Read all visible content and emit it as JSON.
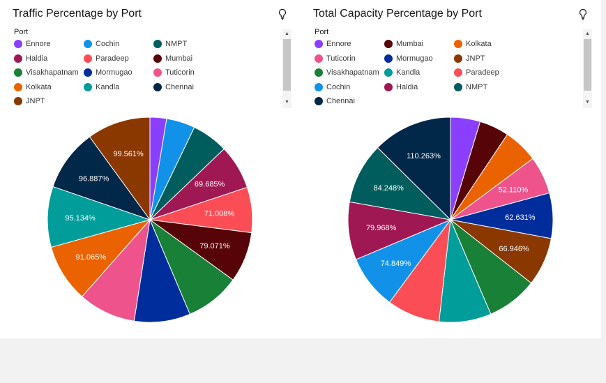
{
  "chart_data": [
    {
      "type": "pie",
      "title": "Traffic Percentage by Port",
      "legend_title": "Port",
      "legend": [
        "Ennore",
        "Cochin",
        "NMPT",
        "Haldia",
        "Paradeep",
        "Mumbai",
        "Visakhapatnam",
        "Mormugao",
        "Tuticorin",
        "Kolkata",
        "Kandla",
        "Chennai",
        "JNPT"
      ],
      "slices": [
        {
          "name": "Ennore",
          "value": 26,
          "color": "#8a3ffc",
          "label": ""
        },
        {
          "name": "Cochin",
          "value": 45,
          "color": "#1192e8",
          "label": ""
        },
        {
          "name": "NMPT",
          "value": 57,
          "color": "#005d5d",
          "label": ""
        },
        {
          "name": "Haldia",
          "value": 69.685,
          "color": "#9f1853",
          "label": "69.685%"
        },
        {
          "name": "Paradeep",
          "value": 71.008,
          "color": "#fa4d56",
          "label": "71.008%"
        },
        {
          "name": "Mumbai",
          "value": 79.071,
          "color": "#570408",
          "label": "79.071%"
        },
        {
          "name": "Visakhapatnam",
          "value": 86,
          "color": "#198038",
          "label": ""
        },
        {
          "name": "Mormugao",
          "value": 88,
          "color": "#002d9c",
          "label": ""
        },
        {
          "name": "Tuticorin",
          "value": 90,
          "color": "#ee538b",
          "label": ""
        },
        {
          "name": "Kolkata",
          "value": 91.065,
          "color": "#eb6200",
          "label": "91.065%"
        },
        {
          "name": "Kandla",
          "value": 95.134,
          "color": "#009d9a",
          "label": "95.134%"
        },
        {
          "name": "Chennai",
          "value": 96.887,
          "color": "#012749",
          "label": "96.887%"
        },
        {
          "name": "JNPT",
          "value": 99.561,
          "color": "#8a3800",
          "label": "99.561%"
        }
      ]
    },
    {
      "type": "pie",
      "title": "Total Capacity Percentage by Port",
      "legend_title": "Port",
      "legend": [
        "Ennore",
        "Mumbai",
        "Kolkata",
        "Tuticorin",
        "Mormugao",
        "JNPT",
        "Visakhapatnam",
        "Kandla",
        "Paradeep",
        "Cochin",
        "Haldia",
        "NMPT",
        "Chennai"
      ],
      "slices": [
        {
          "name": "Ennore",
          "value": 41,
          "color": "#8a3ffc",
          "label": ""
        },
        {
          "name": "Mumbai",
          "value": 41,
          "color": "#570408",
          "label": ""
        },
        {
          "name": "Kolkata",
          "value": 48,
          "color": "#eb6200",
          "label": ""
        },
        {
          "name": "Tuticorin",
          "value": 52.11,
          "color": "#ee538b",
          "label": "52.110%"
        },
        {
          "name": "Mormugao",
          "value": 62.631,
          "color": "#002d9c",
          "label": "62.631%"
        },
        {
          "name": "JNPT",
          "value": 66.946,
          "color": "#8a3800",
          "label": "66.946%"
        },
        {
          "name": "Visakhapatnam",
          "value": 70,
          "color": "#198038",
          "label": ""
        },
        {
          "name": "Kandla",
          "value": 72,
          "color": "#009d9a",
          "label": ""
        },
        {
          "name": "Paradeep",
          "value": 73,
          "color": "#fa4d56",
          "label": ""
        },
        {
          "name": "Cochin",
          "value": 74.849,
          "color": "#1192e8",
          "label": "74.849%"
        },
        {
          "name": "Haldia",
          "value": 79.968,
          "color": "#9f1853",
          "label": "79.968%"
        },
        {
          "name": "NMPT",
          "value": 84.248,
          "color": "#005d5d",
          "label": "84.248%"
        },
        {
          "name": "Chennai",
          "value": 110.263,
          "color": "#012749",
          "label": "110.263%"
        }
      ]
    }
  ],
  "icons": {
    "insight": "lightbulb-icon"
  }
}
